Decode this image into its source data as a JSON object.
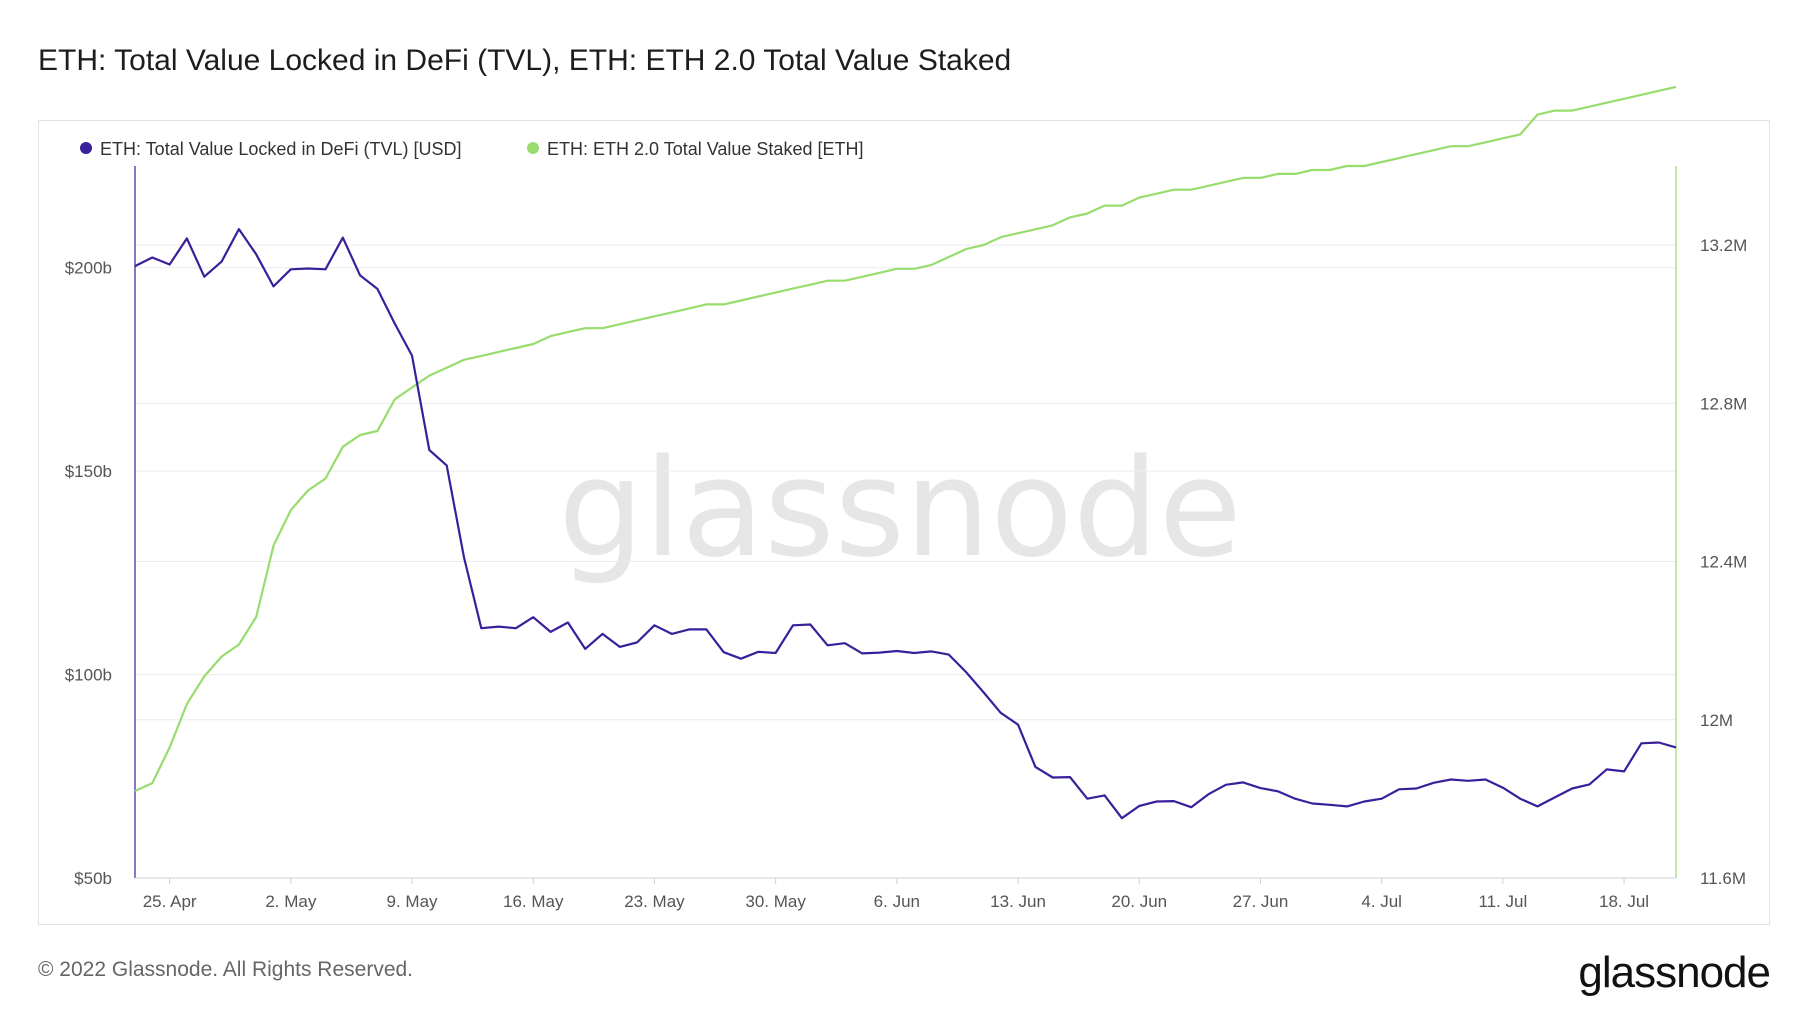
{
  "header": {
    "title": "ETH: Total Value Locked in DeFi (TVL), ETH: ETH 2.0 Total Value Staked"
  },
  "footer": {
    "copyright": "© 2022 Glassnode. All Rights Reserved.",
    "brand": "glassnode"
  },
  "watermark": "glassnode",
  "colors": {
    "tvl": "#3a1f9b",
    "staked": "#98dc6e",
    "grid": "#ececec"
  },
  "chart_data": {
    "type": "line",
    "title": "ETH: Total Value Locked in DeFi (TVL), ETH: ETH 2.0 Total Value Staked",
    "legend_position": "top-left",
    "grid": true,
    "x_ticks": [
      "25. Apr",
      "2. May",
      "9. May",
      "16. May",
      "23. May",
      "30. May",
      "6. Jun",
      "13. Jun",
      "20. Jun",
      "27. Jun",
      "4. Jul",
      "11. Jul",
      "18. Jul"
    ],
    "x_range": [
      "2022-04-23",
      "2022-07-21"
    ],
    "y_left": {
      "ticks": [
        "$50b",
        "$100b",
        "$150b",
        "$200b"
      ],
      "tick_values": [
        50,
        100,
        150,
        200
      ],
      "range": [
        50,
        225
      ],
      "unit": "USD billions"
    },
    "y_right": {
      "ticks": [
        "11.6M",
        "12M",
        "12.4M",
        "12.8M",
        "13.2M"
      ],
      "tick_values": [
        11.6,
        12.0,
        12.4,
        12.8,
        13.2
      ],
      "range": [
        11.6,
        13.4
      ],
      "unit": "ETH millions"
    },
    "x": [
      "2022-04-23",
      "2022-04-24",
      "2022-04-25",
      "2022-04-26",
      "2022-04-27",
      "2022-04-28",
      "2022-04-29",
      "2022-04-30",
      "2022-05-01",
      "2022-05-02",
      "2022-05-03",
      "2022-05-04",
      "2022-05-05",
      "2022-05-06",
      "2022-05-07",
      "2022-05-08",
      "2022-05-09",
      "2022-05-10",
      "2022-05-11",
      "2022-05-12",
      "2022-05-13",
      "2022-05-14",
      "2022-05-15",
      "2022-05-16",
      "2022-05-17",
      "2022-05-18",
      "2022-05-19",
      "2022-05-20",
      "2022-05-21",
      "2022-05-22",
      "2022-05-23",
      "2022-05-24",
      "2022-05-25",
      "2022-05-26",
      "2022-05-27",
      "2022-05-28",
      "2022-05-29",
      "2022-05-30",
      "2022-05-31",
      "2022-06-01",
      "2022-06-02",
      "2022-06-03",
      "2022-06-04",
      "2022-06-05",
      "2022-06-06",
      "2022-06-07",
      "2022-06-08",
      "2022-06-09",
      "2022-06-10",
      "2022-06-11",
      "2022-06-12",
      "2022-06-13",
      "2022-06-14",
      "2022-06-15",
      "2022-06-16",
      "2022-06-17",
      "2022-06-18",
      "2022-06-19",
      "2022-06-20",
      "2022-06-21",
      "2022-06-22",
      "2022-06-23",
      "2022-06-24",
      "2022-06-25",
      "2022-06-26",
      "2022-06-27",
      "2022-06-28",
      "2022-06-29",
      "2022-06-30",
      "2022-07-01",
      "2022-07-02",
      "2022-07-03",
      "2022-07-04",
      "2022-07-05",
      "2022-07-06",
      "2022-07-07",
      "2022-07-08",
      "2022-07-09",
      "2022-07-10",
      "2022-07-11",
      "2022-07-12",
      "2022-07-13",
      "2022-07-14",
      "2022-07-15",
      "2022-07-16",
      "2022-07-17",
      "2022-07-18",
      "2022-07-19",
      "2022-07-20",
      "2022-07-21"
    ],
    "series": [
      {
        "name": "ETH: Total Value Locked in DeFi (TVL) [USD]",
        "axis": "left",
        "color": "#3a1f9b",
        "values": [
          200.4,
          202.5,
          200.8,
          207.2,
          197.8,
          201.5,
          209.5,
          203.3,
          195.4,
          199.6,
          199.8,
          199.6,
          207.4,
          198.1,
          194.8,
          186.3,
          178.4,
          155.2,
          151.4,
          128.8,
          111.4,
          111.8,
          111.4,
          114.1,
          110.5,
          112.8,
          106.3,
          110.0,
          106.8,
          107.9,
          112.1,
          110.0,
          111.1,
          111.1,
          105.5,
          103.9,
          105.6,
          105.3,
          112.1,
          112.3,
          107.2,
          107.7,
          105.2,
          105.4,
          105.8,
          105.3,
          105.7,
          104.9,
          100.6,
          95.7,
          90.6,
          87.7,
          77.3,
          74.7,
          74.8,
          69.5,
          70.3,
          64.7,
          67.7,
          68.8,
          68.9,
          67.4,
          70.6,
          72.9,
          73.5,
          72.1,
          71.3,
          69.5,
          68.3,
          68.0,
          67.6,
          68.8,
          69.5,
          71.8,
          72.0,
          73.4,
          74.2,
          73.9,
          74.2,
          72.2,
          69.5,
          67.6,
          69.8,
          72.0,
          73.0,
          76.7,
          76.2,
          83.1,
          83.3,
          82.1
        ]
      },
      {
        "name": "ETH: ETH 2.0 Total Value Staked [ETH]",
        "axis": "right",
        "color": "#98dc6e",
        "values": [
          11.82,
          11.84,
          11.93,
          12.04,
          12.11,
          12.16,
          12.19,
          12.26,
          12.44,
          12.53,
          12.58,
          12.61,
          12.69,
          12.72,
          12.73,
          12.81,
          12.84,
          12.87,
          12.89,
          12.91,
          12.92,
          12.93,
          12.94,
          12.95,
          12.97,
          12.98,
          12.99,
          12.99,
          13.0,
          13.01,
          13.02,
          13.03,
          13.04,
          13.05,
          13.05,
          13.06,
          13.07,
          13.08,
          13.09,
          13.1,
          13.11,
          13.11,
          13.12,
          13.13,
          13.14,
          13.14,
          13.15,
          13.17,
          13.19,
          13.2,
          13.22,
          13.23,
          13.24,
          13.25,
          13.27,
          13.28,
          13.3,
          13.3,
          13.32,
          13.33,
          13.34,
          13.34,
          13.35,
          13.36,
          13.37,
          13.37,
          13.38,
          13.38,
          13.39,
          13.39,
          13.4,
          13.4,
          13.41,
          13.42,
          13.43,
          13.44,
          13.45,
          13.45,
          13.46,
          13.47,
          13.48,
          13.53,
          13.54,
          13.54,
          13.55,
          13.56,
          13.57,
          13.58,
          13.59,
          13.6
        ]
      }
    ]
  }
}
